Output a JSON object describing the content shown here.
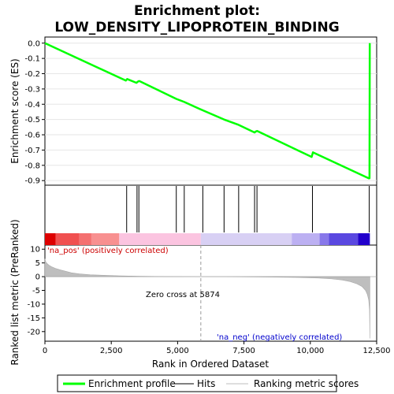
{
  "chart_data": {
    "type": "line",
    "title_line1": "Enrichment plot:",
    "title_line2": "LOW_DENSITY_LIPOPROTEIN_BINDING",
    "es_panel": {
      "ylabel": "Enrichment score (ES)",
      "ylim": [
        -0.93,
        0.04
      ],
      "yticks": [
        0.0,
        -0.1,
        -0.2,
        -0.3,
        -0.4,
        -0.5,
        -0.6,
        -0.7,
        -0.8,
        -0.9
      ],
      "ytick_labels": [
        "0.0",
        "-0.1",
        "-0.2",
        "-0.3",
        "-0.4",
        "-0.5",
        "-0.6",
        "-0.7",
        "-0.8",
        "-0.9"
      ],
      "series": [
        {
          "name": "Enrichment profile",
          "color": "#00ff00",
          "x": [
            0,
            3050,
            3100,
            3450,
            3480,
            3520,
            3560,
            4950,
            5250,
            5950,
            6750,
            7300,
            7900,
            7950,
            8000,
            10050,
            10100,
            12200,
            12230,
            12240
          ],
          "y": [
            0.0,
            -0.245,
            -0.235,
            -0.26,
            -0.255,
            -0.25,
            -0.248,
            -0.365,
            -0.385,
            -0.44,
            -0.5,
            -0.535,
            -0.585,
            -0.578,
            -0.575,
            -0.745,
            -0.715,
            -0.885,
            -0.885,
            0.0
          ]
        }
      ]
    },
    "hits": {
      "name": "Hits",
      "x": [
        3080,
        3470,
        3540,
        4950,
        5250,
        5950,
        6750,
        7300,
        7900,
        7990,
        10080,
        12220
      ]
    },
    "heatmap_bar": {
      "segments": [
        {
          "x0": 0,
          "x1": 400,
          "color": "#dd0000"
        },
        {
          "x0": 400,
          "x1": 1300,
          "color": "#f05050"
        },
        {
          "x0": 1300,
          "x1": 1750,
          "color": "#f47070"
        },
        {
          "x0": 1750,
          "x1": 2800,
          "color": "#f89090"
        },
        {
          "x0": 2800,
          "x1": 5874,
          "color": "#fbc4e0"
        },
        {
          "x0": 5874,
          "x1": 9300,
          "color": "#d8d0f4"
        },
        {
          "x0": 9300,
          "x1": 10350,
          "color": "#bcb0f2"
        },
        {
          "x0": 10350,
          "x1": 10700,
          "color": "#8878ea"
        },
        {
          "x0": 10700,
          "x1": 11800,
          "color": "#5a48e0"
        },
        {
          "x0": 11800,
          "x1": 12244,
          "color": "#2200cc"
        }
      ]
    },
    "metric_panel": {
      "ylabel": "Ranked list metric (PreRanked)",
      "xlabel": "Rank in Ordered Dataset",
      "ylim": [
        -23.5,
        11.5
      ],
      "yticks": [
        10,
        5,
        0,
        -5,
        -10,
        -15,
        -20
      ],
      "ytick_labels": [
        "10",
        "5",
        "0",
        "-5",
        "-10",
        "-15",
        "-20"
      ],
      "xlim": [
        0,
        12500
      ],
      "xticks": [
        0,
        2500,
        5000,
        7500,
        10000,
        12500
      ],
      "xtick_labels": [
        "0",
        "2,500",
        "5,000",
        "7,500",
        "10,000",
        "12,500"
      ],
      "series": [
        {
          "name": "Ranking metric scores",
          "color": "#bebebe",
          "x": [
            0,
            30,
            80,
            150,
            250,
            400,
            600,
            800,
            1000,
            1300,
            1700,
            2200,
            2800,
            3500,
            4500,
            5874,
            7000,
            8500,
            9500,
            10300,
            10800,
            11200,
            11500,
            11750,
            11950,
            12080,
            12150,
            12200,
            12230,
            12244
          ],
          "y": [
            6.5,
            5.4,
            4.8,
            4.2,
            3.6,
            3.0,
            2.4,
            1.9,
            1.4,
            1.0,
            0.7,
            0.5,
            0.3,
            0.15,
            0.05,
            0.0,
            -0.05,
            -0.15,
            -0.3,
            -0.5,
            -0.8,
            -1.2,
            -1.8,
            -2.6,
            -3.6,
            -5.0,
            -6.5,
            -8.5,
            -12.0,
            -22.5
          ]
        }
      ],
      "zero_cross_label": "Zero cross at 5874",
      "zero_cross_x": 5874,
      "pos_label": "'na_pos' (positively correlated)",
      "neg_label": "'na_neg' (negatively correlated)",
      "pos_color": "#cc0000",
      "neg_color": "#0000cc"
    },
    "legend": {
      "placement": "bottom",
      "items": [
        {
          "label": "Enrichment profile",
          "color": "#00ff00",
          "kind": "thick-line"
        },
        {
          "label": "Hits",
          "color": "#000000",
          "kind": "line"
        },
        {
          "label": "Ranking metric scores",
          "color": "#bebebe",
          "kind": "line"
        }
      ]
    }
  }
}
